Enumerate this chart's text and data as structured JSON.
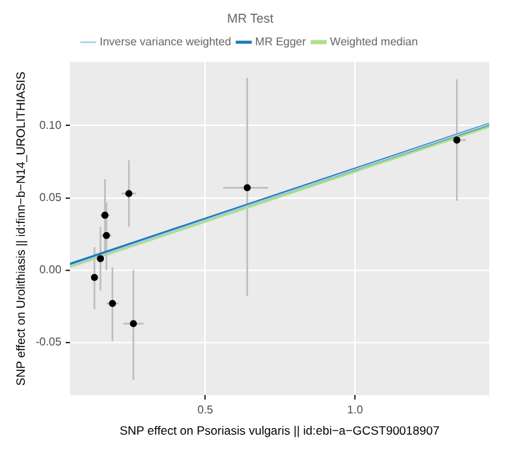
{
  "chart_data": {
    "type": "scatter",
    "legend_title": "MR Test",
    "xlabel": "SNP effect on Psoriasis vulgaris || id:ebi−a−GCST90018907",
    "ylabel": "SNP effect on Urolithiasis || id:finn−b−N14_UROLITHIASIS",
    "xlim": [
      0.048,
      1.448
    ],
    "ylim": [
      -0.0865,
      0.144
    ],
    "xticks": [
      0.5,
      {
        "value": 1.0,
        "label": "1.0"
      }
    ],
    "yticks": [
      -0.05,
      {
        "value": 0,
        "label": "0.00"
      },
      0.05,
      {
        "value": 0.1,
        "label": "0.10"
      }
    ],
    "grid": true,
    "legend": "top",
    "series": [
      {
        "marker": "circle",
        "color": "#000000",
        "x": [
          0.13,
          0.15,
          0.165,
          0.17,
          0.19,
          0.245,
          0.26,
          0.64,
          1.34
        ],
        "values": [
          -0.005,
          0.008,
          0.038,
          0.024,
          -0.023,
          0.053,
          -0.037,
          0.057,
          0.09
        ],
        "errors": [
          [
            -0.027,
            0.016
          ],
          [
            -0.014,
            0.03
          ],
          [
            0.012,
            0.063
          ],
          [
            0,
            0.047
          ],
          [
            -0.049,
            0.002
          ],
          [
            0.03,
            0.076
          ],
          [
            -0.076,
            0
          ],
          [
            -0.018,
            0.133
          ],
          [
            0.048,
            0.132
          ]
        ],
        "xerrors": [
          0.01,
          0.01,
          0.016,
          0.017,
          0.02,
          0.024,
          0.034,
          [
            0.56,
            0.71
          ],
          0.03
        ]
      },
      {
        "type": "line",
        "name": "Inverse variance weighted",
        "color": "#a6cee3",
        "x": [
          0.048,
          1.448
        ],
        "values": [
          0.003,
          0.101
        ]
      },
      {
        "type": "line",
        "name": "MR Egger",
        "color": "#1f78b4",
        "x": [
          0.048,
          1.448
        ],
        "values": [
          0.004,
          0.101
        ]
      },
      {
        "type": "line",
        "name": "Weighted median",
        "color": "#b2df8a",
        "x": [
          0.048,
          1.448
        ],
        "values": [
          0.003,
          0.1
        ]
      }
    ]
  }
}
